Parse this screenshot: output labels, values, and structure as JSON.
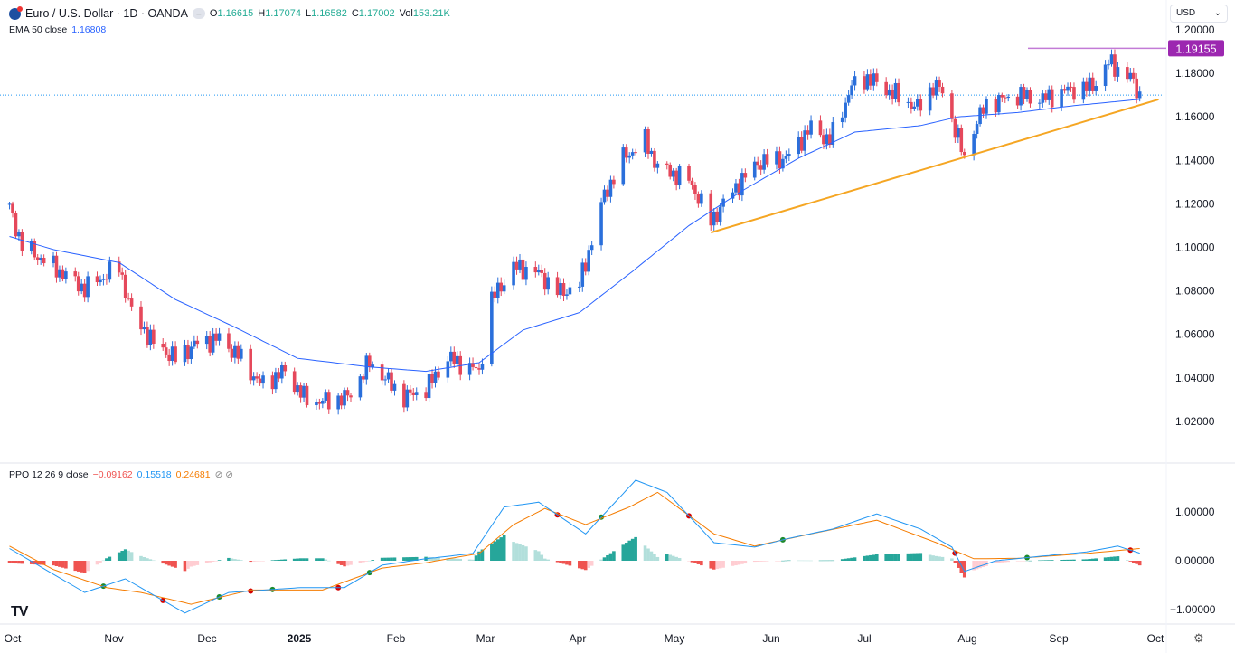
{
  "header": {
    "title": "Euro / U.S. Dollar · 1D · OANDA",
    "open_label": "O",
    "open": "1.16615",
    "high_label": "H",
    "high": "1.17074",
    "low_label": "L",
    "low": "1.16582",
    "close_label": "C",
    "close": "1.17002",
    "vol_label": "Vol",
    "vol": "153.21K",
    "ema_label": "EMA 50 close",
    "ema_value": "1.16808"
  },
  "currency": "USD",
  "ppo": {
    "label": "PPO 12 26 9 close",
    "hist": "−0.09162",
    "ppo": "0.15518",
    "signal": "0.24681",
    "icons": "⊘ ⊘"
  },
  "price_axis": [
    "1.20000",
    "1.18000",
    "1.16000",
    "1.14000",
    "1.12000",
    "1.10000",
    "1.08000",
    "1.06000",
    "1.04000",
    "1.02000"
  ],
  "ppo_axis": [
    "1.00000",
    "0.00000",
    "−1.00000"
  ],
  "resistance_label": "1.19155",
  "time_axis": [
    "Oct",
    "Nov",
    "Dec",
    "2025",
    "Feb",
    "Mar",
    "Apr",
    "May",
    "Jun",
    "Jul",
    "Aug",
    "Sep",
    "Oct"
  ],
  "colors": {
    "up": "#2a6fdb",
    "down": "#e5485b",
    "ema": "#2962ff",
    "trend": "#f5a623",
    "resistance": "#9c27b0",
    "ppo": "#2196f3",
    "signal": "#f57c00",
    "hist_up": "#26a69a",
    "hist_down": "#ef5350"
  },
  "chart_data": {
    "type": "candlestick",
    "instrument": "EUR/USD",
    "timeframe": "1D",
    "ylim": [
      1.01,
      1.205
    ],
    "close_path": [
      [
        "2024-09-30",
        1.118
      ],
      [
        "2024-10-04",
        1.101
      ],
      [
        "2024-10-14",
        1.091
      ],
      [
        "2024-10-24",
        1.081
      ],
      [
        "2024-11-04",
        1.091
      ],
      [
        "2024-11-08",
        1.07
      ],
      [
        "2024-11-15",
        1.056
      ],
      [
        "2024-11-22",
        1.049
      ],
      [
        "2024-11-29",
        1.056
      ],
      [
        "2024-12-06",
        1.058
      ],
      [
        "2024-12-13",
        1.049
      ],
      [
        "2024-12-19",
        1.037
      ],
      [
        "2024-12-27",
        1.043
      ],
      [
        "2025-01-02",
        1.031
      ],
      [
        "2025-01-07",
        1.029
      ],
      [
        "2025-01-16",
        1.031
      ],
      [
        "2025-01-23",
        1.047
      ],
      [
        "2025-02-03",
        1.031
      ],
      [
        "2025-02-10",
        1.035
      ],
      [
        "2025-02-17",
        1.049
      ],
      [
        "2025-02-27",
        1.043
      ],
      [
        "2025-03-03",
        1.076
      ],
      [
        "2025-03-10",
        1.091
      ],
      [
        "2025-03-17",
        1.089
      ],
      [
        "2025-03-25",
        1.079
      ],
      [
        "2025-03-31",
        1.083
      ],
      [
        "2025-04-04",
        1.103
      ],
      [
        "2025-04-08",
        1.124
      ],
      [
        "2025-04-14",
        1.141
      ],
      [
        "2025-04-21",
        1.149
      ],
      [
        "2025-04-25",
        1.137
      ],
      [
        "2025-05-05",
        1.131
      ],
      [
        "2025-05-12",
        1.112
      ],
      [
        "2025-05-19",
        1.126
      ],
      [
        "2025-05-27",
        1.139
      ],
      [
        "2025-06-05",
        1.141
      ],
      [
        "2025-06-13",
        1.155
      ],
      [
        "2025-06-19",
        1.149
      ],
      [
        "2025-06-26",
        1.174
      ],
      [
        "2025-07-01",
        1.178
      ],
      [
        "2025-07-10",
        1.17
      ],
      [
        "2025-07-17",
        1.164
      ],
      [
        "2025-07-22",
        1.174
      ],
      [
        "2025-07-25",
        1.172
      ],
      [
        "2025-08-01",
        1.141
      ],
      [
        "2025-08-04",
        1.155
      ],
      [
        "2025-08-08",
        1.166
      ],
      [
        "2025-08-18",
        1.17
      ],
      [
        "2025-08-26",
        1.168
      ],
      [
        "2025-09-02",
        1.172
      ],
      [
        "2025-09-11",
        1.174
      ],
      [
        "2025-09-16",
        1.185
      ],
      [
        "2025-09-23",
        1.178
      ],
      [
        "2025-09-26",
        1.17
      ]
    ],
    "ema50": [
      [
        "2024-09-30",
        1.105
      ],
      [
        "2024-10-14",
        1.099
      ],
      [
        "2024-11-04",
        1.093
      ],
      [
        "2024-11-22",
        1.076
      ],
      [
        "2024-12-10",
        1.064
      ],
      [
        "2024-12-31",
        1.049
      ],
      [
        "2025-01-23",
        1.045
      ],
      [
        "2025-02-10",
        1.043
      ],
      [
        "2025-02-27",
        1.047
      ],
      [
        "2025-03-13",
        1.062
      ],
      [
        "2025-03-31",
        1.07
      ],
      [
        "2025-04-17",
        1.089
      ],
      [
        "2025-05-05",
        1.11
      ],
      [
        "2025-05-22",
        1.126
      ],
      [
        "2025-06-09",
        1.141
      ],
      [
        "2025-06-27",
        1.153
      ],
      [
        "2025-07-18",
        1.156
      ],
      [
        "2025-07-30",
        1.16
      ],
      [
        "2025-08-18",
        1.162
      ],
      [
        "2025-09-04",
        1.165
      ],
      [
        "2025-09-26",
        1.16808
      ]
    ],
    "trendline": [
      [
        "2025-05-12",
        1.1068
      ],
      [
        "2025-10-02",
        1.168
      ]
    ],
    "resistance": 1.19155,
    "last_price": 1.17002,
    "ppo_ylim": [
      -1.3,
      1.7
    ],
    "ppo_line": [
      [
        "2024-09-30",
        0.25
      ],
      [
        "2024-10-24",
        -0.65
      ],
      [
        "2024-11-06",
        -0.37
      ],
      [
        "2024-11-25",
        -1.07
      ],
      [
        "2024-12-09",
        -0.65
      ],
      [
        "2025-01-01",
        -0.55
      ],
      [
        "2025-01-15",
        -0.55
      ],
      [
        "2025-01-27",
        -0.09
      ],
      [
        "2025-02-10",
        0.04
      ],
      [
        "2025-02-25",
        0.15
      ],
      [
        "2025-03-07",
        1.1
      ],
      [
        "2025-03-18",
        1.2
      ],
      [
        "2025-04-02",
        0.55
      ],
      [
        "2025-04-18",
        1.65
      ],
      [
        "2025-04-28",
        1.4
      ],
      [
        "2025-05-13",
        0.37
      ],
      [
        "2025-05-26",
        0.28
      ],
      [
        "2025-06-06",
        0.46
      ],
      [
        "2025-06-20",
        0.65
      ],
      [
        "2025-07-04",
        0.96
      ],
      [
        "2025-07-18",
        0.65
      ],
      [
        "2025-07-28",
        0.28
      ],
      [
        "2025-08-01",
        -0.22
      ],
      [
        "2025-08-11",
        0.0
      ],
      [
        "2025-08-25",
        0.09
      ],
      [
        "2025-09-09",
        0.18
      ],
      [
        "2025-09-19",
        0.3
      ],
      [
        "2025-09-26",
        0.155
      ]
    ],
    "signal_line": [
      [
        "2024-09-30",
        0.3
      ],
      [
        "2024-10-14",
        -0.18
      ],
      [
        "2024-10-31",
        -0.55
      ],
      [
        "2024-11-11",
        -0.65
      ],
      [
        "2024-11-27",
        -0.89
      ],
      [
        "2024-12-16",
        -0.6
      ],
      [
        "2025-01-08",
        -0.6
      ],
      [
        "2025-01-27",
        -0.15
      ],
      [
        "2025-02-10",
        -0.04
      ],
      [
        "2025-02-27",
        0.15
      ],
      [
        "2025-03-10",
        0.74
      ],
      [
        "2025-03-20",
        1.07
      ],
      [
        "2025-04-02",
        0.74
      ],
      [
        "2025-04-16",
        1.1
      ],
      [
        "2025-04-25",
        1.4
      ],
      [
        "2025-05-13",
        0.55
      ],
      [
        "2025-05-26",
        0.3
      ],
      [
        "2025-06-13",
        0.55
      ],
      [
        "2025-07-04",
        0.83
      ],
      [
        "2025-07-23",
        0.37
      ],
      [
        "2025-08-04",
        0.04
      ],
      [
        "2025-08-18",
        0.05
      ],
      [
        "2025-09-09",
        0.15
      ],
      [
        "2025-09-26",
        0.25
      ]
    ]
  }
}
